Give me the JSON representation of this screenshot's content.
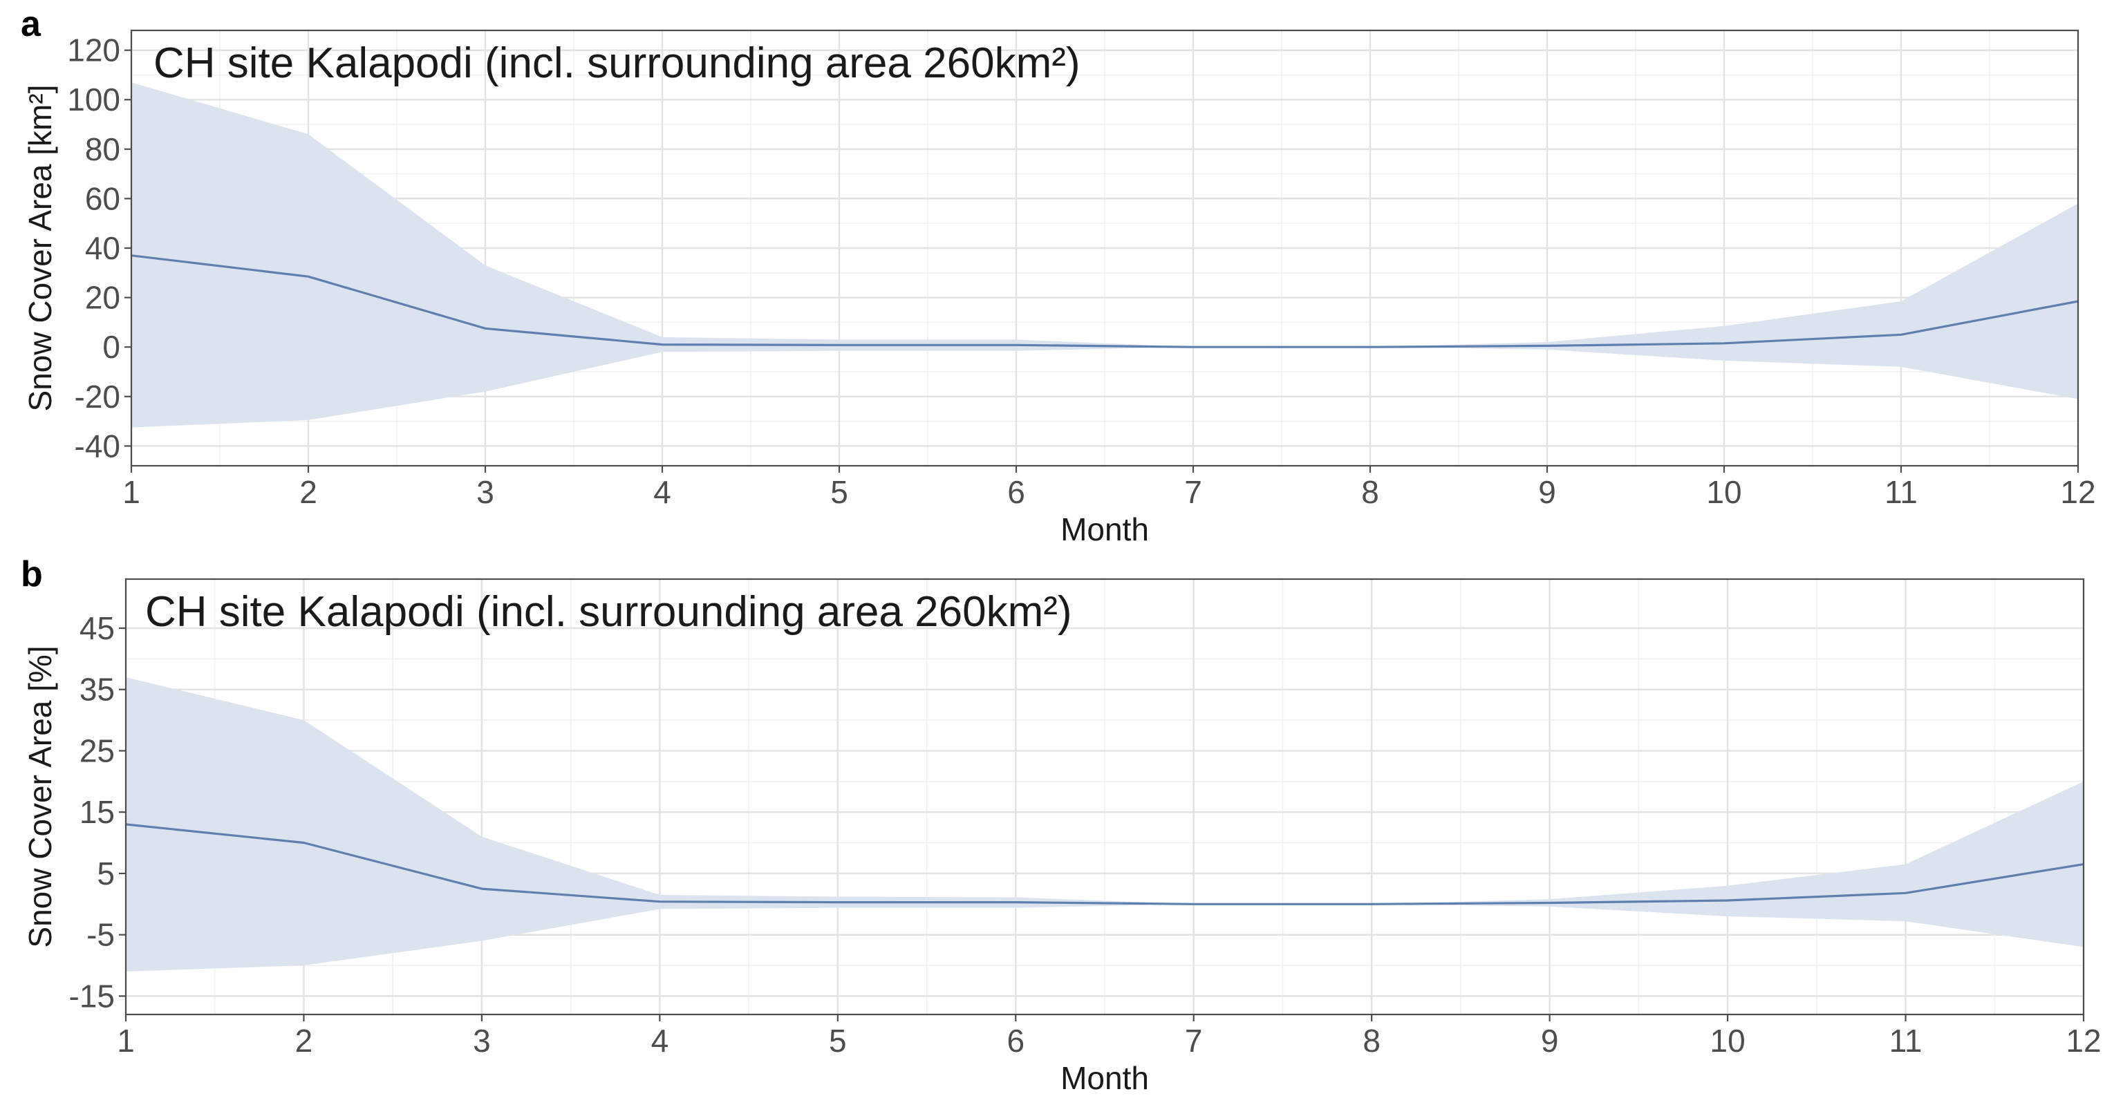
{
  "colors": {
    "ribbon": "#dbe3ef",
    "line": "#5f7fae",
    "grid": "#e3e3e3",
    "text": "#4d4d4d"
  },
  "chart_data": [
    {
      "panel": "a",
      "type": "area",
      "title": "CH site Kalapodi (incl. surrounding area 260km²)",
      "xlabel": "Month",
      "ylabel": "Snow Cover Area [km²]",
      "x": [
        1,
        2,
        3,
        4,
        5,
        6,
        7,
        8,
        9,
        10,
        11,
        12
      ],
      "xlim": [
        1,
        12
      ],
      "ylim": [
        -48,
        128
      ],
      "yticks": [
        -40,
        -20,
        0,
        20,
        40,
        60,
        80,
        100,
        120
      ],
      "ytick_labels": [
        "-40",
        "-20",
        "0",
        "20",
        "40",
        "60",
        "80",
        "100",
        "120"
      ],
      "xticks": [
        1,
        2,
        3,
        4,
        5,
        6,
        7,
        8,
        9,
        10,
        11,
        12
      ],
      "xtick_labels": [
        "1",
        "2",
        "3",
        "4",
        "5",
        "6",
        "7",
        "8",
        "9",
        "10",
        "11",
        "12"
      ],
      "grid": true,
      "series": [
        {
          "values": [
            37,
            28.5,
            7.5,
            1,
            0.8,
            0.8,
            0,
            0,
            0.5,
            1.5,
            5,
            18.5
          ]
        }
      ],
      "band_upper": [
        107,
        86,
        33,
        4,
        3,
        3,
        0,
        0,
        2,
        8.5,
        18.5,
        58
      ],
      "band_lower": [
        -32.5,
        -29.5,
        -18,
        -2,
        -1.5,
        -1.5,
        0,
        0,
        -1,
        -5.5,
        -8,
        -21
      ]
    },
    {
      "panel": "b",
      "type": "area",
      "title": "CH site Kalapodi (incl. surrounding area 260km²)",
      "xlabel": "Month",
      "ylabel": "Snow Cover Area [%]",
      "x": [
        1,
        2,
        3,
        4,
        5,
        6,
        7,
        8,
        9,
        10,
        11,
        12
      ],
      "xlim": [
        1,
        12
      ],
      "ylim": [
        -18,
        53
      ],
      "yticks": [
        -15,
        -5,
        5,
        15,
        25,
        35,
        45
      ],
      "ytick_labels": [
        "-15",
        "-5",
        "5",
        "15",
        "25",
        "35",
        "45"
      ],
      "xticks": [
        1,
        2,
        3,
        4,
        5,
        6,
        7,
        8,
        9,
        10,
        11,
        12
      ],
      "xtick_labels": [
        "1",
        "2",
        "3",
        "4",
        "5",
        "6",
        "7",
        "8",
        "9",
        "10",
        "11",
        "12"
      ],
      "grid": true,
      "series": [
        {
          "values": [
            13,
            10,
            2.5,
            0.4,
            0.3,
            0.3,
            0,
            0,
            0.2,
            0.6,
            1.8,
            6.5
          ]
        }
      ],
      "band_upper": [
        37,
        30,
        11,
        1.5,
        1.2,
        1.1,
        0,
        0,
        0.8,
        3,
        6.5,
        20
      ],
      "band_lower": [
        -11,
        -10,
        -6,
        -0.8,
        -0.6,
        -0.6,
        0,
        0,
        -0.4,
        -2,
        -2.8,
        -7
      ]
    }
  ]
}
